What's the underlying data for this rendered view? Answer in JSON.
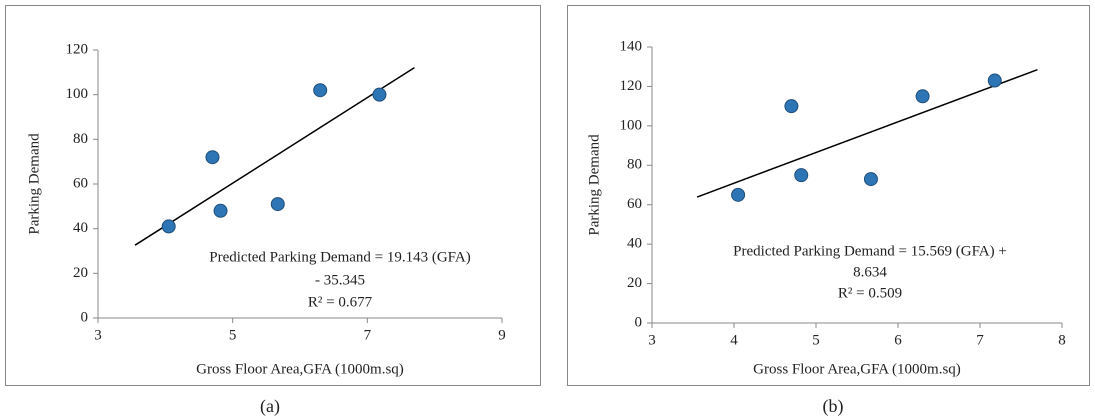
{
  "chart_data": [
    {
      "type": "scatter",
      "caption": "(a)",
      "x_label": "Gross Floor Area,GFA (1000m.sq)",
      "y_label": "Parking Demand",
      "x": [
        4.05,
        4.7,
        4.82,
        5.67,
        6.3,
        7.18
      ],
      "y": [
        41,
        72,
        48,
        51,
        102,
        100
      ],
      "color": "#2E75B6",
      "trendline": {
        "x": [
          3.55,
          7.7
        ],
        "y": [
          32.6,
          112.1
        ],
        "color": "#000000"
      },
      "annotation": [
        "Predicted Parking Demand = 19.143 (GFA)",
        "- 35.345",
        "R² = 0.677"
      ],
      "xlim": [
        3,
        9
      ],
      "xticks": [
        3,
        5,
        7,
        9
      ],
      "ylim": [
        0,
        120
      ],
      "yticks": [
        0,
        20,
        40,
        60,
        80,
        100,
        120
      ],
      "grid": false
    },
    {
      "type": "scatter",
      "caption": "(b)",
      "x_label": "Gross Floor Area,GFA (1000m.sq)",
      "y_label": "Parking Demand",
      "x": [
        4.05,
        4.7,
        4.82,
        5.67,
        6.3,
        7.18
      ],
      "y": [
        65,
        110,
        75,
        73,
        115,
        123
      ],
      "color": "#2E75B6",
      "trendline": {
        "x": [
          3.55,
          7.7
        ],
        "y": [
          63.9,
          128.5
        ],
        "color": "#000000"
      },
      "annotation": [
        "Predicted Parking Demand = 15.569 (GFA) +",
        "8.634",
        "R² = 0.509"
      ],
      "xlim": [
        3,
        8
      ],
      "xticks": [
        3,
        4,
        5,
        6,
        7,
        8
      ],
      "ylim": [
        0,
        140
      ],
      "yticks": [
        0,
        20,
        40,
        60,
        80,
        100,
        120,
        140
      ],
      "grid": false
    }
  ]
}
